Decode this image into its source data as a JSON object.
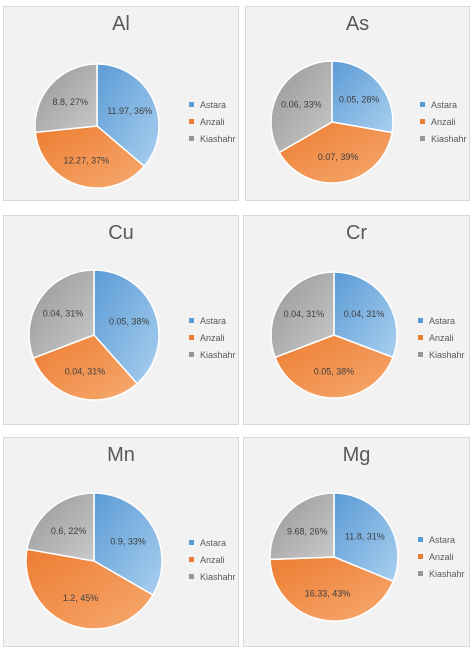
{
  "colors": {
    "astara_light": "#a9cfef",
    "astara_dark": "#5b9bd5",
    "anzali_light": "#f6a970",
    "anzali_dark": "#ed7d31",
    "kiashahr_light": "#c9c9c9",
    "kiashahr_dark": "#979797"
  },
  "chart_data": [
    {
      "type": "pie",
      "title": "Al",
      "categories": [
        "Astara",
        "Anzali",
        "Kiashahr"
      ],
      "values": [
        11.97,
        12.27,
        8.8
      ],
      "percents": [
        36,
        37,
        27
      ],
      "labels": [
        "11.97, 36%",
        "12.27, 37%",
        "8.8, 27%"
      ],
      "legend": "right"
    },
    {
      "type": "pie",
      "title": "As",
      "categories": [
        "Astara",
        "Anzali",
        "Kiashahr"
      ],
      "values": [
        0.05,
        0.07,
        0.06
      ],
      "percents": [
        28,
        39,
        33
      ],
      "labels": [
        "0.05, 28%",
        "0.07, 39%",
        "0.06, 33%"
      ],
      "legend": "right"
    },
    {
      "type": "pie",
      "title": "Cu",
      "categories": [
        "Astara",
        "Anzali",
        "Kiashahr"
      ],
      "values": [
        0.05,
        0.04,
        0.04
      ],
      "percents": [
        38,
        31,
        31
      ],
      "labels": [
        "0.05, 38%",
        "0.04, 31%",
        "0.04, 31%"
      ],
      "legend": "right"
    },
    {
      "type": "pie",
      "title": "Cr",
      "categories": [
        "Astara",
        "Anzali",
        "Kiashahr"
      ],
      "values": [
        0.04,
        0.05,
        0.04
      ],
      "percents": [
        31,
        38,
        31
      ],
      "labels": [
        "0.04, 31%",
        "0.05, 38%",
        "0.04, 31%"
      ],
      "legend": "right"
    },
    {
      "type": "pie",
      "title": "Mn",
      "categories": [
        "Astara",
        "Anzali",
        "Kiashahr"
      ],
      "values": [
        0.9,
        1.2,
        0.6
      ],
      "percents": [
        33,
        45,
        22
      ],
      "labels": [
        "0.9, 33%",
        "1.2, 45%",
        "0.6, 22%"
      ],
      "legend": "right"
    },
    {
      "type": "pie",
      "title": "Mg",
      "categories": [
        "Astara",
        "Anzali",
        "Kiashahr"
      ],
      "values": [
        11.8,
        16.33,
        9.68
      ],
      "percents": [
        31,
        43,
        26
      ],
      "labels": [
        "11.8, 31%",
        "16.33, 43%",
        "9.68, 26%"
      ],
      "legend": "right"
    }
  ]
}
